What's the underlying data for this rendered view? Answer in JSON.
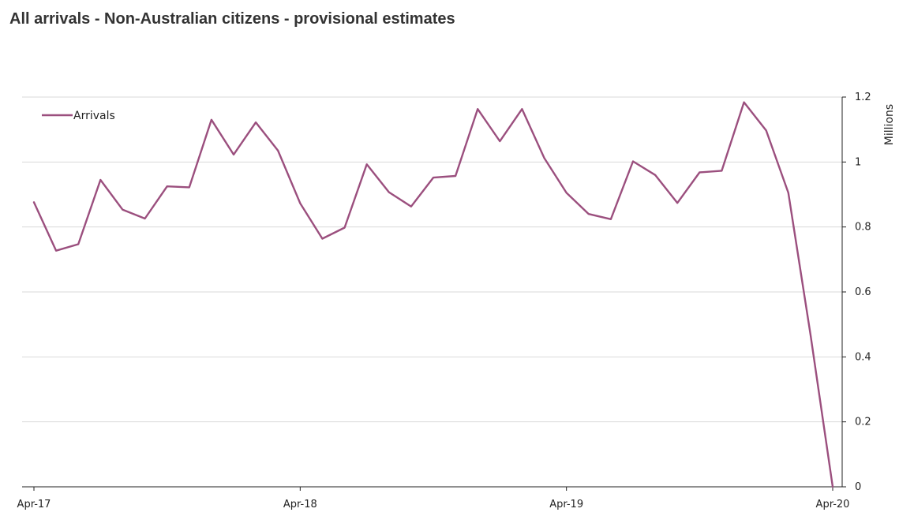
{
  "chart_data": {
    "type": "line",
    "title": "All arrivals - Non-Australian citizens - provisional estimates",
    "xlabel": "",
    "ylabel": "Millions",
    "ylim": [
      0,
      1.2
    ],
    "yticks": [
      "0",
      "0.2",
      "0.4",
      "0.6",
      "0.8",
      "1",
      "1.2"
    ],
    "xtick_labels": [
      "Apr-17",
      "Apr-18",
      "Apr-19",
      "Apr-20"
    ],
    "x": [
      "Apr-17",
      "May-17",
      "Jun-17",
      "Jul-17",
      "Aug-17",
      "Sep-17",
      "Oct-17",
      "Nov-17",
      "Dec-17",
      "Jan-18",
      "Feb-18",
      "Mar-18",
      "Apr-18",
      "May-18",
      "Jun-18",
      "Jul-18",
      "Aug-18",
      "Sep-18",
      "Oct-18",
      "Nov-18",
      "Dec-18",
      "Jan-19",
      "Feb-19",
      "Mar-19",
      "Apr-19",
      "May-19",
      "Jun-19",
      "Jul-19",
      "Aug-19",
      "Sep-19",
      "Oct-19",
      "Nov-19",
      "Dec-19",
      "Jan-20",
      "Feb-20",
      "Mar-20",
      "Apr-20"
    ],
    "series": [
      {
        "name": "Arrivals",
        "color": "#9b4f7e",
        "values": [
          0.876,
          0.727,
          0.747,
          0.945,
          0.853,
          0.826,
          0.925,
          0.922,
          1.13,
          1.023,
          1.122,
          1.035,
          0.873,
          0.764,
          0.798,
          0.993,
          0.907,
          0.863,
          0.952,
          0.957,
          1.163,
          1.064,
          1.163,
          1.012,
          0.905,
          0.84,
          0.824,
          1.002,
          0.96,
          0.874,
          0.968,
          0.973,
          1.184,
          1.097,
          0.905,
          0.468,
          0.0
        ]
      }
    ],
    "grid": true,
    "legend_position": "top-left",
    "y_axis_side": "right"
  }
}
